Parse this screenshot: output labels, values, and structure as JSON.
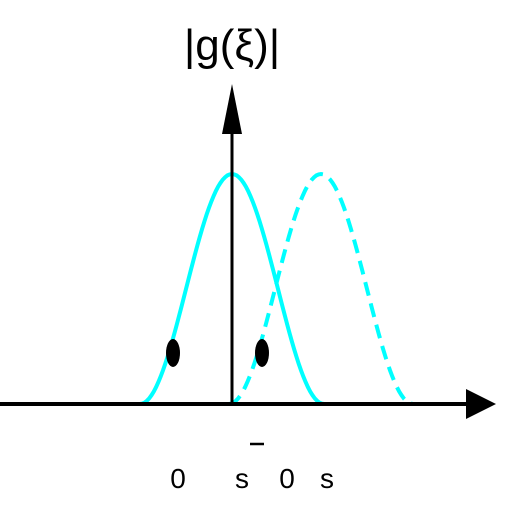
{
  "diagram": {
    "y_axis_label": "|g(ξ)|",
    "x_tick_labels": [
      "0",
      "s",
      "0",
      "s"
    ],
    "colors": {
      "curve": "#00ffff",
      "axis": "#000000",
      "points": "#000000",
      "background": "#ffffff"
    },
    "curves": [
      {
        "name": "solid-gaussian",
        "style": "solid"
      },
      {
        "name": "dashed-gaussian",
        "style": "dashed"
      }
    ],
    "points": 2
  }
}
